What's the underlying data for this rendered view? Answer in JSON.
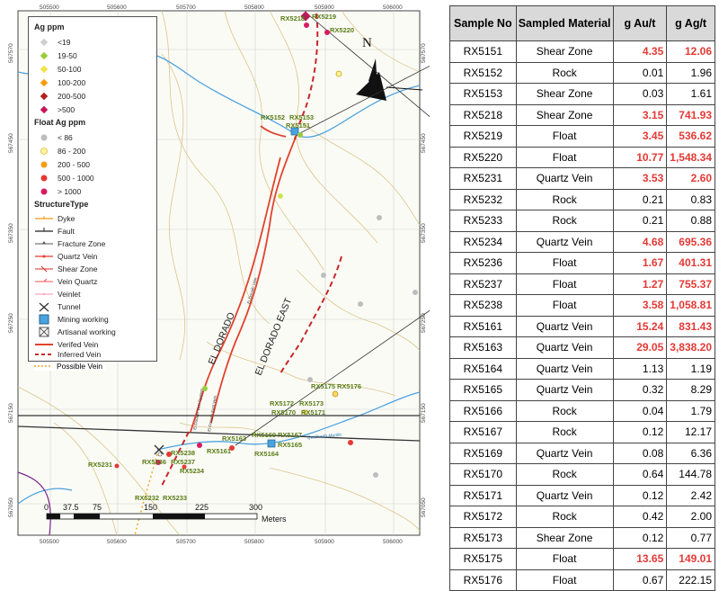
{
  "colors": {
    "sample_green": "#5a7d17",
    "verified": "#e0432c",
    "inferred": "#c62828",
    "possible": "#f5a623",
    "river": "#4da3e0",
    "highlight": "#e53935"
  },
  "map": {
    "top_ticks": [
      "505500",
      "505600",
      "505700",
      "505800",
      "505900",
      "506000"
    ],
    "bottom_ticks": [
      "505500",
      "505600",
      "505700",
      "505800",
      "505900",
      "506000"
    ],
    "left_ticks": [
      "567570",
      "567450",
      "567350",
      "567250",
      "567150",
      "567050",
      "566950"
    ],
    "right_ticks": [
      "567570",
      "567450",
      "567350",
      "567250",
      "567150",
      "567050",
      "566950"
    ],
    "north_label": "N",
    "vein_labels": [
      "EL DORADO",
      "EL DORADO EAST"
    ],
    "small_labels": [
      "El Dorado Vein",
      "El Dorado Vein System",
      "El Dorado East Vein",
      "Quebrada Murillo"
    ],
    "sample_labels": [
      "RX5218",
      "RX5219",
      "RX5220",
      "RX5152",
      "RX5153",
      "RX5151",
      "RX5175",
      "RX5176",
      "RX5172",
      "RX5173",
      "RX5170",
      "RX5171",
      "RX5163",
      "RX5169",
      "RX5167",
      "RX5164",
      "RX5165",
      "RX5161",
      "RX5231",
      "RX5238",
      "RX5236",
      "RX5237",
      "RX5234",
      "RX5232",
      "RX5233"
    ],
    "scale_ticks": [
      "0",
      "37.5",
      "75",
      "150",
      "225",
      "300"
    ],
    "scale_unit": "Meters"
  },
  "legend": {
    "ag_title": "Ag ppm",
    "ag_items": [
      "<19",
      "19-50",
      "50-100",
      "100-200",
      "200-500",
      ">500"
    ],
    "float_title": "Float Ag ppm",
    "float_items": [
      "< 86",
      "86 - 200",
      "200 - 500",
      "500 - 1000",
      "> 1000"
    ],
    "structure_title": "StructureType",
    "structure_items": [
      "Dyke",
      "Fault",
      "Fracture Zone",
      "Quartz Vein",
      "Shear Zone",
      "Vein Quartz",
      "Veinlet",
      "Tunnel",
      "Mining working",
      "Artisanal working",
      "Verifed Vein",
      "Inferred Vein",
      "Possible Vein"
    ]
  },
  "table": {
    "headers": [
      "Sample No",
      "Sampled Material",
      "g Au/t",
      "g Ag/t"
    ],
    "rows": [
      {
        "sample": "RX5151",
        "material": "Shear Zone",
        "au": "4.35",
        "ag": "12.06",
        "hi": true
      },
      {
        "sample": "RX5152",
        "material": "Rock",
        "au": "0.01",
        "ag": "1.96",
        "hi": false
      },
      {
        "sample": "RX5153",
        "material": "Shear Zone",
        "au": "0.03",
        "ag": "1.61",
        "hi": false
      },
      {
        "sample": "RX5218",
        "material": "Shear Zone",
        "au": "3.15",
        "ag": "741.93",
        "hi": true
      },
      {
        "sample": "RX5219",
        "material": "Float",
        "au": "3.45",
        "ag": "536.62",
        "hi": true
      },
      {
        "sample": "RX5220",
        "material": "Float",
        "au": "10.77",
        "ag": "1,548.34",
        "hi": true
      },
      {
        "sample": "RX5231",
        "material": "Quartz Vein",
        "au": "3.53",
        "ag": "2.60",
        "hi": true
      },
      {
        "sample": "RX5232",
        "material": "Rock",
        "au": "0.21",
        "ag": "0.83",
        "hi": false
      },
      {
        "sample": "RX5233",
        "material": "Rock",
        "au": "0.21",
        "ag": "0.88",
        "hi": false
      },
      {
        "sample": "RX5234",
        "material": "Quartz Vein",
        "au": "4.68",
        "ag": "695.36",
        "hi": true
      },
      {
        "sample": "RX5236",
        "material": "Float",
        "au": "1.67",
        "ag": "401.31",
        "hi": true
      },
      {
        "sample": "RX5237",
        "material": "Float",
        "au": "1.27",
        "ag": "755.37",
        "hi": true
      },
      {
        "sample": "RX5238",
        "material": "Float",
        "au": "3.58",
        "ag": "1,058.81",
        "hi": true
      },
      {
        "sample": "RX5161",
        "material": "Quartz Vein",
        "au": "15.24",
        "ag": "831.43",
        "hi": true
      },
      {
        "sample": "RX5163",
        "material": "Quartz Vein",
        "au": "29.05",
        "ag": "3,838.20",
        "hi": true
      },
      {
        "sample": "RX5164",
        "material": "Quartz Vein",
        "au": "1.13",
        "ag": "1.19",
        "hi": false
      },
      {
        "sample": "RX5165",
        "material": "Quartz Vein",
        "au": "0.32",
        "ag": "8.29",
        "hi": false
      },
      {
        "sample": "RX5166",
        "material": "Rock",
        "au": "0.04",
        "ag": "1.79",
        "hi": false
      },
      {
        "sample": "RX5167",
        "material": "Rock",
        "au": "0.12",
        "ag": "12.17",
        "hi": false
      },
      {
        "sample": "RX5169",
        "material": "Quartz Vein",
        "au": "0.08",
        "ag": "6.36",
        "hi": false
      },
      {
        "sample": "RX5170",
        "material": "Rock",
        "au": "0.64",
        "ag": "144.78",
        "hi": false
      },
      {
        "sample": "RX5171",
        "material": "Quartz Vein",
        "au": "0.12",
        "ag": "2.42",
        "hi": false
      },
      {
        "sample": "RX5172",
        "material": "Rock",
        "au": "0.42",
        "ag": "2.00",
        "hi": false
      },
      {
        "sample": "RX5173",
        "material": "Shear Zone",
        "au": "0.12",
        "ag": "0.77",
        "hi": false
      },
      {
        "sample": "RX5175",
        "material": "Float",
        "au": "13.65",
        "ag": "149.01",
        "hi": true
      },
      {
        "sample": "RX5176",
        "material": "Float",
        "au": "0.67",
        "ag": "222.15",
        "hi": false
      }
    ]
  }
}
